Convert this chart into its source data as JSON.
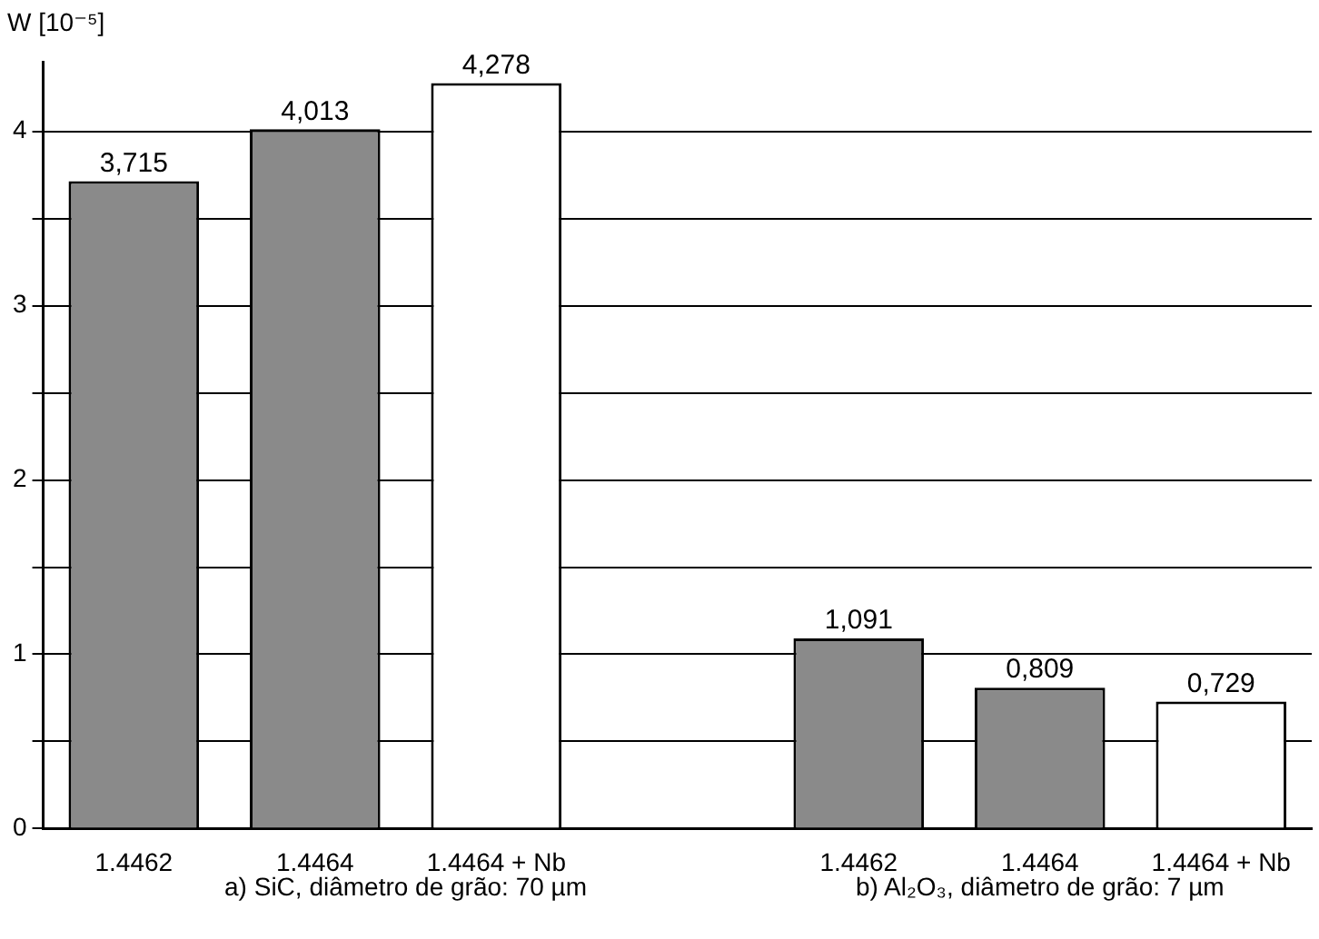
{
  "chart_data": {
    "type": "bar",
    "ylabel": "W [10⁻⁵]",
    "categories": [
      "1.4462",
      "1.4464",
      "1.4464 + Nb",
      null,
      "1.4462",
      "1.4464",
      "1.4464 + Nb"
    ],
    "values": [
      3.715,
      4.013,
      4.278,
      null,
      1.091,
      0.809,
      0.729
    ],
    "colors": [
      "#8a8a8a",
      "#8a8a8a",
      "#ffffff",
      null,
      "#8a8a8a",
      "#8a8a8a",
      "#ffffff"
    ],
    "value_labels": [
      "3,715",
      "4,013",
      "4,278",
      null,
      "1,091",
      "0,809",
      "0,729"
    ],
    "ylim": [
      0,
      4.4
    ],
    "yticks": [
      0,
      {
        "value": 0.5,
        "label": null
      },
      1,
      {
        "value": 1.5,
        "label": null
      },
      2,
      {
        "value": 2.5,
        "label": null
      },
      3,
      {
        "value": 3.5,
        "label": null
      },
      4
    ],
    "grid": "y",
    "annotations": [
      "a) SiC, diâmetro de grão: 70 µm",
      "b) Al₂O₃, diâmetro de grão: 7 µm"
    ]
  }
}
